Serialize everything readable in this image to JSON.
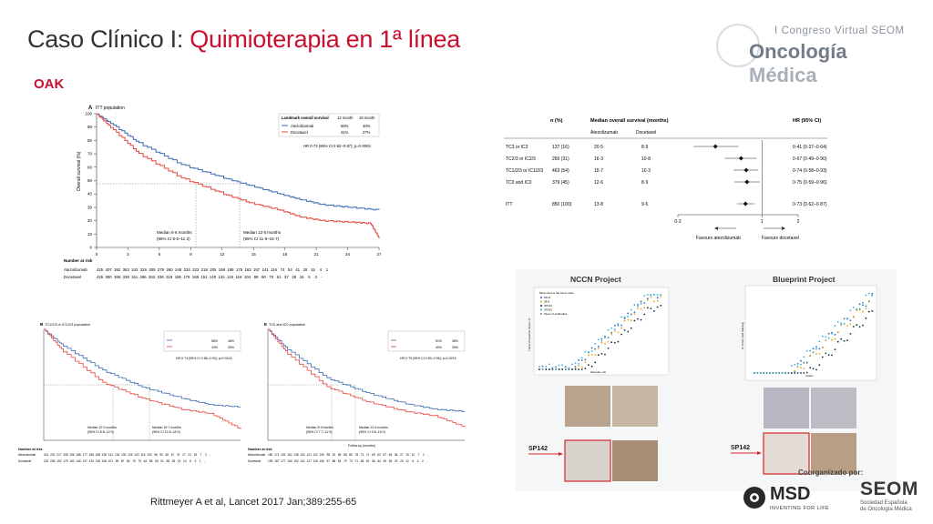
{
  "title": {
    "part1": "Caso Clínico I: ",
    "part2": "Quimioterapia en 1ª línea"
  },
  "subtitle": "OAK",
  "logo": {
    "top": "I Congreso Virtual SEOM",
    "main1": "Oncología",
    "main2": " Médica"
  },
  "citation": "Rittmeyer A et al, Lancet  2017 Jan;389:255-65",
  "footer": {
    "msd": "MSD",
    "msd_tag": "INVENTING FOR LIFE",
    "seom": "SEOM",
    "seom_sub1": "Sociedad Española",
    "seom_sub2": "de Oncología Médica",
    "coorg": "Coorganizado por:"
  },
  "km_main": {
    "panel_label": "A",
    "population": "ITT population",
    "ylabel": "Overall survival (%)",
    "yticks": [
      "100",
      "90",
      "80",
      "70",
      "60",
      "50",
      "40",
      "30",
      "20",
      "10",
      "0"
    ],
    "xticks": [
      "0",
      "3",
      "6",
      "9",
      "12",
      "15",
      "18",
      "21",
      "24",
      "27"
    ],
    "table_header": [
      "Landmark overall survival",
      "12 month",
      "18 month"
    ],
    "rows": [
      {
        "name": "Atezolizumab",
        "m12": "55%",
        "m18": "40%"
      },
      {
        "name": "Docetaxel",
        "m12": "41%",
        "m18": "27%"
      }
    ],
    "hr": "HR 0·73 (95% CI 0·62–0·87); p=0·0003",
    "median_doc": "Median 9·6 months",
    "median_doc_ci": "(95% CI 8·6–11·2)",
    "median_atz": "Median 13·8 months",
    "median_atz_ci": "(95% CI 11·8–15·7)",
    "risk_label": "Number at risk",
    "risk_atz_label": "Atezolizumab",
    "risk_doc_label": "Docetaxel",
    "risk_atz": "425  407  382  363  342  326  305  279  260  248  234  223  218  205  198  188  175  163  157  141  116   74   54   41   28   15    4    1",
    "risk_doc": "425  390  365  336  311  286  263  236  219  195  179  168  151  140  132  123  116  104   98   90   70   51   37   28   16    6    3    -"
  },
  "km_b": {
    "label": "B",
    "population": "TC1/2/3 or IC1/2/3 population",
    "m12a": "58%",
    "m18a": "46%",
    "m12d": "43%",
    "m18d": "30%",
    "hr": "HR 0·74 (95% CI 0·58–0·93); p=0·0102",
    "med1": "Median 10·3 months",
    "med1ci": "(95% CI 8·8–12·0)",
    "med2": "Median 15·7 months",
    "med2ci": "(95% CI 12·6–18·0)",
    "risk_label": "Number at risk",
    "risk_a_label": "Atezolizumab",
    "risk_d_label": "Docetaxel",
    "risk_a": "241  232  217  206  196  186  177  168  158  150  142  134  130  125  120  115  103   96   90   82   67   37   27   21   15    7    2    -",
    "risk_d": "222  206  192  175  162  146  137  125  118  108  101   95   87   80   75   70   64   58   55   51   38   28   20   14    6    3    1    -"
  },
  "km_c": {
    "label": "E",
    "population": "TC0 and IC0 population",
    "m12a": "51%",
    "m18a": "38%",
    "m12d": "40%",
    "m18d": "26%",
    "hr": "HR 0·75 (95% CI 0·59–0·96); p=0·0215",
    "med1": "Median 8·9 months",
    "med1ci": "(95% CI 7·7–11·5)",
    "med2": "Median 12·6 months",
    "med2ci": "(95% CI 9·6–15·2)",
    "xlabel": "Follow-up (months)",
    "risk_label": "Number at risk",
    "risk_a_label": "Atezolizumab",
    "risk_d_label": "Docetaxel",
    "risk_a": "180  171  161  152  138  131  121  112  105   98   92   89   88   80   78   73   71   65   62   57   48   36   27   19   12    7    2    -",
    "risk_d": "199  187  177  165  152  141  127  115  106   97   88   84   79   73   71   68   62   56   54   49   36   29   20   12    6    3    2    -"
  },
  "forest": {
    "col_n": "n (%)",
    "col_median": "Median overall survival (months)",
    "col_atz": "Atezolizumab",
    "col_doc": "Docetaxel",
    "col_hr": "HR (95% CI)",
    "rows": [
      {
        "name": "TC3 or IC3",
        "n": "137 (16)",
        "atz": "20·5",
        "doc": "8·9",
        "hr": "0·41 (0·27–0·64)",
        "est": 0.41,
        "lo": 0.27,
        "hi": 0.64
      },
      {
        "name": "TC2/3 or IC2/3",
        "n": "265 (31)",
        "atz": "16·3",
        "doc": "10·8",
        "hr": "0·67 (0·49–0·90)",
        "est": 0.67,
        "lo": 0.49,
        "hi": 0.9
      },
      {
        "name": "TC1/2/3 or IC1/2/3",
        "n": "463 (54)",
        "atz": "15·7",
        "doc": "10·3",
        "hr": "0·74 (0·58–0·93)",
        "est": 0.74,
        "lo": 0.58,
        "hi": 0.93
      },
      {
        "name": "TC0 and IC0",
        "n": "379 (45)",
        "atz": "12·6",
        "doc": "8·9",
        "hr": "0·75 (0·59–0·96)",
        "est": 0.75,
        "lo": 0.59,
        "hi": 0.96
      },
      {
        "name": "ITT",
        "n": "850 (100)",
        "atz": "13·8",
        "doc": "9·6",
        "hr": "0·73 (0·62–0·87)",
        "est": 0.73,
        "lo": 0.62,
        "hi": 0.87
      }
    ],
    "xticks": [
      "0·2",
      "1",
      "2"
    ],
    "favours_left": "Favours atezolizumab",
    "favours_right": "Favours docetaxel"
  },
  "comparison": {
    "left_title": "NCCN Project",
    "right_title": "Blueprint Project",
    "left_legend": [
      "22C3",
      "28-8",
      "SP142",
      "SP263",
      "Mean of antibodies"
    ],
    "left_legend_head": "Mean across the tumor cells",
    "left_xlabel": "Samples, No.",
    "left_ylabel": "Tumor Proportion Score, %",
    "right_xlabel": "Cases",
    "right_ylabel": "% Tumor Cell Staining",
    "right_legend": [
      "22C3",
      "28-8",
      "SP142",
      "SP263"
    ],
    "sp142_left": "SP142",
    "sp142_right": "SP142",
    "colors": {
      "c22c3": "#2f6db5",
      "c288": "#e8a317",
      "csp142": "#1c2a44",
      "csp263": "#3ab0d6",
      "red": "#d9262b"
    }
  },
  "colors": {
    "atezolizumab": "#3a6bb5",
    "docetaxel": "#e8453c",
    "accent": "#c8102e"
  }
}
